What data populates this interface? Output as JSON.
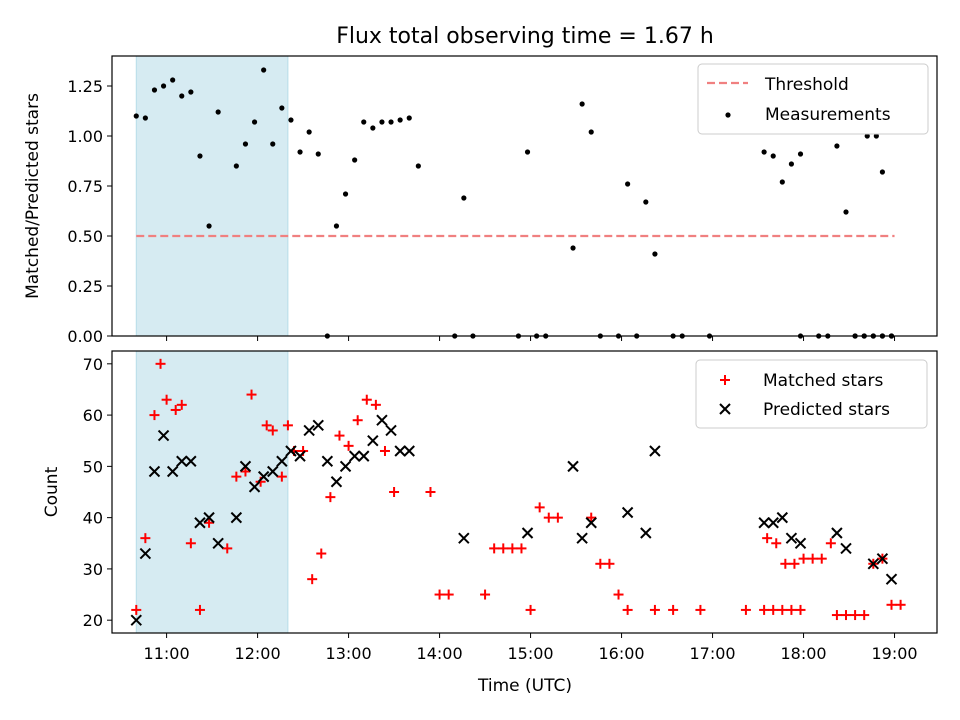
{
  "chart_data": [
    {
      "type": "scatter",
      "title": "Flux total observing time = 1.67 h",
      "ylabel": "Matched/Predicted stars",
      "xlim": [
        "10:24",
        "19:28"
      ],
      "ylim": [
        0,
        1.4
      ],
      "yticks": [
        "0.00",
        "0.25",
        "0.50",
        "0.75",
        "1.00",
        "1.25"
      ],
      "shaded_span": [
        "10:40",
        "12:20"
      ],
      "legend": {
        "position": "upper right",
        "entries": [
          "Threshold",
          "Measurements"
        ]
      },
      "threshold": {
        "name": "Threshold",
        "value": 0.5,
        "x": [
          "10:40",
          "19:00"
        ],
        "color": "#f08080"
      },
      "measurements": {
        "name": "Measurements",
        "color": "#000000",
        "points": [
          [
            "10:40",
            1.1
          ],
          [
            "10:46",
            1.09
          ],
          [
            "10:52",
            1.23
          ],
          [
            "10:58",
            1.25
          ],
          [
            "11:04",
            1.28
          ],
          [
            "11:10",
            1.2
          ],
          [
            "11:16",
            1.22
          ],
          [
            "11:22",
            0.9
          ],
          [
            "11:28",
            0.55
          ],
          [
            "11:34",
            1.12
          ],
          [
            "11:46",
            0.85
          ],
          [
            "11:52",
            0.96
          ],
          [
            "11:58",
            1.07
          ],
          [
            "12:04",
            1.33
          ],
          [
            "12:10",
            0.96
          ],
          [
            "12:16",
            1.14
          ],
          [
            "12:22",
            1.08
          ],
          [
            "12:28",
            0.92
          ],
          [
            "12:34",
            1.02
          ],
          [
            "12:40",
            0.91
          ],
          [
            "12:46",
            0.0
          ],
          [
            "12:52",
            0.55
          ],
          [
            "12:58",
            0.71
          ],
          [
            "13:04",
            0.88
          ],
          [
            "13:10",
            1.07
          ],
          [
            "13:16",
            1.04
          ],
          [
            "13:22",
            1.07
          ],
          [
            "13:28",
            1.07
          ],
          [
            "13:34",
            1.08
          ],
          [
            "13:40",
            1.09
          ],
          [
            "13:46",
            0.85
          ],
          [
            "14:10",
            0.0
          ],
          [
            "14:16",
            0.69
          ],
          [
            "14:22",
            0.0
          ],
          [
            "14:52",
            0.0
          ],
          [
            "14:58",
            0.92
          ],
          [
            "15:04",
            0.0
          ],
          [
            "15:10",
            0.0
          ],
          [
            "15:28",
            0.44
          ],
          [
            "15:34",
            1.16
          ],
          [
            "15:40",
            1.02
          ],
          [
            "15:46",
            0.0
          ],
          [
            "15:58",
            0.0
          ],
          [
            "16:04",
            0.76
          ],
          [
            "16:10",
            0.0
          ],
          [
            "16:16",
            0.67
          ],
          [
            "16:22",
            0.41
          ],
          [
            "16:34",
            0.0
          ],
          [
            "16:40",
            0.0
          ],
          [
            "16:58",
            0.0
          ],
          [
            "17:58",
            0.0
          ],
          [
            "18:34",
            0.0
          ],
          [
            "18:40",
            0.0
          ],
          [
            "18:46",
            0.0
          ],
          [
            "18:52",
            0.0
          ],
          [
            "18:58",
            0.0
          ],
          [
            "17:34",
            0.92
          ],
          [
            "17:40",
            0.9
          ],
          [
            "17:46",
            0.77
          ],
          [
            "17:52",
            0.86
          ],
          [
            "17:58",
            0.91
          ],
          [
            "18:10",
            0.0
          ],
          [
            "18:16",
            0.0
          ],
          [
            "18:22",
            0.95
          ],
          [
            "18:28",
            0.62
          ],
          [
            "18:34",
            0.0
          ],
          [
            "18:40",
            0.0
          ],
          [
            "18:46",
            0.0
          ],
          [
            "18:52",
            0.0
          ],
          [
            "18:58",
            0.0
          ],
          [
            "18:42",
            1.0
          ],
          [
            "18:48",
            1.0
          ],
          [
            "18:52",
            0.82
          ]
        ]
      }
    },
    {
      "type": "scatter",
      "xlabel": "Time (UTC)",
      "ylabel": "Count",
      "xlim": [
        "10:24",
        "19:28"
      ],
      "ylim": [
        17.5,
        72.5
      ],
      "xticks": [
        "11:00",
        "12:00",
        "13:00",
        "14:00",
        "15:00",
        "16:00",
        "17:00",
        "18:00",
        "19:00"
      ],
      "yticks": [
        "20",
        "30",
        "40",
        "50",
        "60",
        "70"
      ],
      "shaded_span": [
        "10:40",
        "12:20"
      ],
      "legend": {
        "position": "upper right",
        "entries": [
          "Matched stars",
          "Predicted stars"
        ]
      },
      "series": [
        {
          "name": "Matched stars",
          "marker": "+",
          "color": "#ff0000",
          "points": [
            [
              "10:40",
              22
            ],
            [
              "10:46",
              36
            ],
            [
              "10:52",
              60
            ],
            [
              "10:56",
              70
            ],
            [
              "11:00",
              63
            ],
            [
              "11:06",
              61
            ],
            [
              "11:10",
              62
            ],
            [
              "11:16",
              35
            ],
            [
              "11:22",
              22
            ],
            [
              "11:28",
              39
            ],
            [
              "11:40",
              34
            ],
            [
              "11:46",
              48
            ],
            [
              "11:52",
              49
            ],
            [
              "11:56",
              64
            ],
            [
              "12:02",
              47
            ],
            [
              "12:06",
              58
            ],
            [
              "12:10",
              57
            ],
            [
              "12:16",
              48
            ],
            [
              "12:20",
              58
            ],
            [
              "12:24",
              53
            ],
            [
              "12:30",
              53
            ],
            [
              "12:36",
              28
            ],
            [
              "12:42",
              33
            ],
            [
              "12:48",
              44
            ],
            [
              "12:54",
              56
            ],
            [
              "13:00",
              54
            ],
            [
              "13:06",
              59
            ],
            [
              "13:12",
              63
            ],
            [
              "13:18",
              62
            ],
            [
              "13:24",
              53
            ],
            [
              "13:30",
              45
            ],
            [
              "13:54",
              45
            ],
            [
              "14:00",
              25
            ],
            [
              "14:06",
              25
            ],
            [
              "14:30",
              25
            ],
            [
              "14:36",
              34
            ],
            [
              "14:42",
              34
            ],
            [
              "14:48",
              34
            ],
            [
              "14:54",
              34
            ],
            [
              "15:00",
              22
            ],
            [
              "15:06",
              42
            ],
            [
              "15:12",
              40
            ],
            [
              "15:18",
              40
            ],
            [
              "15:40",
              40
            ],
            [
              "15:46",
              31
            ],
            [
              "15:52",
              31
            ],
            [
              "15:58",
              25
            ],
            [
              "16:04",
              22
            ],
            [
              "16:22",
              22
            ],
            [
              "16:34",
              22
            ],
            [
              "16:52",
              22
            ],
            [
              "17:22",
              22
            ],
            [
              "17:34",
              22
            ],
            [
              "17:40",
              22
            ],
            [
              "17:46",
              22
            ],
            [
              "17:52",
              22
            ],
            [
              "17:58",
              22
            ],
            [
              "17:36",
              36
            ],
            [
              "17:42",
              35
            ],
            [
              "17:48",
              31
            ],
            [
              "17:54",
              31
            ],
            [
              "18:00",
              32
            ],
            [
              "18:06",
              32
            ],
            [
              "18:12",
              32
            ],
            [
              "18:18",
              35
            ],
            [
              "18:22",
              21
            ],
            [
              "18:28",
              21
            ],
            [
              "18:34",
              21
            ],
            [
              "18:40",
              21
            ],
            [
              "18:46",
              31
            ],
            [
              "18:52",
              32
            ],
            [
              "18:58",
              23
            ],
            [
              "19:04",
              23
            ]
          ]
        },
        {
          "name": "Predicted stars",
          "marker": "x",
          "color": "#000000",
          "points": [
            [
              "10:40",
              20
            ],
            [
              "10:46",
              33
            ],
            [
              "10:52",
              49
            ],
            [
              "10:58",
              56
            ],
            [
              "11:04",
              49
            ],
            [
              "11:10",
              51
            ],
            [
              "11:16",
              51
            ],
            [
              "11:22",
              39
            ],
            [
              "11:28",
              40
            ],
            [
              "11:34",
              35
            ],
            [
              "11:46",
              40
            ],
            [
              "11:52",
              50
            ],
            [
              "11:58",
              46
            ],
            [
              "12:04",
              48
            ],
            [
              "12:10",
              49
            ],
            [
              "12:16",
              51
            ],
            [
              "12:22",
              53
            ],
            [
              "12:28",
              52
            ],
            [
              "12:34",
              57
            ],
            [
              "12:40",
              58
            ],
            [
              "12:46",
              51
            ],
            [
              "12:52",
              47
            ],
            [
              "12:58",
              50
            ],
            [
              "13:04",
              52
            ],
            [
              "13:10",
              52
            ],
            [
              "13:16",
              55
            ],
            [
              "13:22",
              59
            ],
            [
              "13:28",
              57
            ],
            [
              "13:34",
              53
            ],
            [
              "13:40",
              53
            ],
            [
              "14:16",
              36
            ],
            [
              "14:58",
              37
            ],
            [
              "15:28",
              50
            ],
            [
              "15:34",
              36
            ],
            [
              "15:40",
              39
            ],
            [
              "16:04",
              41
            ],
            [
              "16:16",
              37
            ],
            [
              "16:22",
              53
            ],
            [
              "17:34",
              39
            ],
            [
              "17:40",
              39
            ],
            [
              "17:46",
              40
            ],
            [
              "17:52",
              36
            ],
            [
              "17:58",
              35
            ],
            [
              "18:22",
              37
            ],
            [
              "18:28",
              34
            ],
            [
              "18:46",
              31
            ],
            [
              "18:52",
              32
            ],
            [
              "18:58",
              28
            ]
          ]
        }
      ]
    }
  ]
}
